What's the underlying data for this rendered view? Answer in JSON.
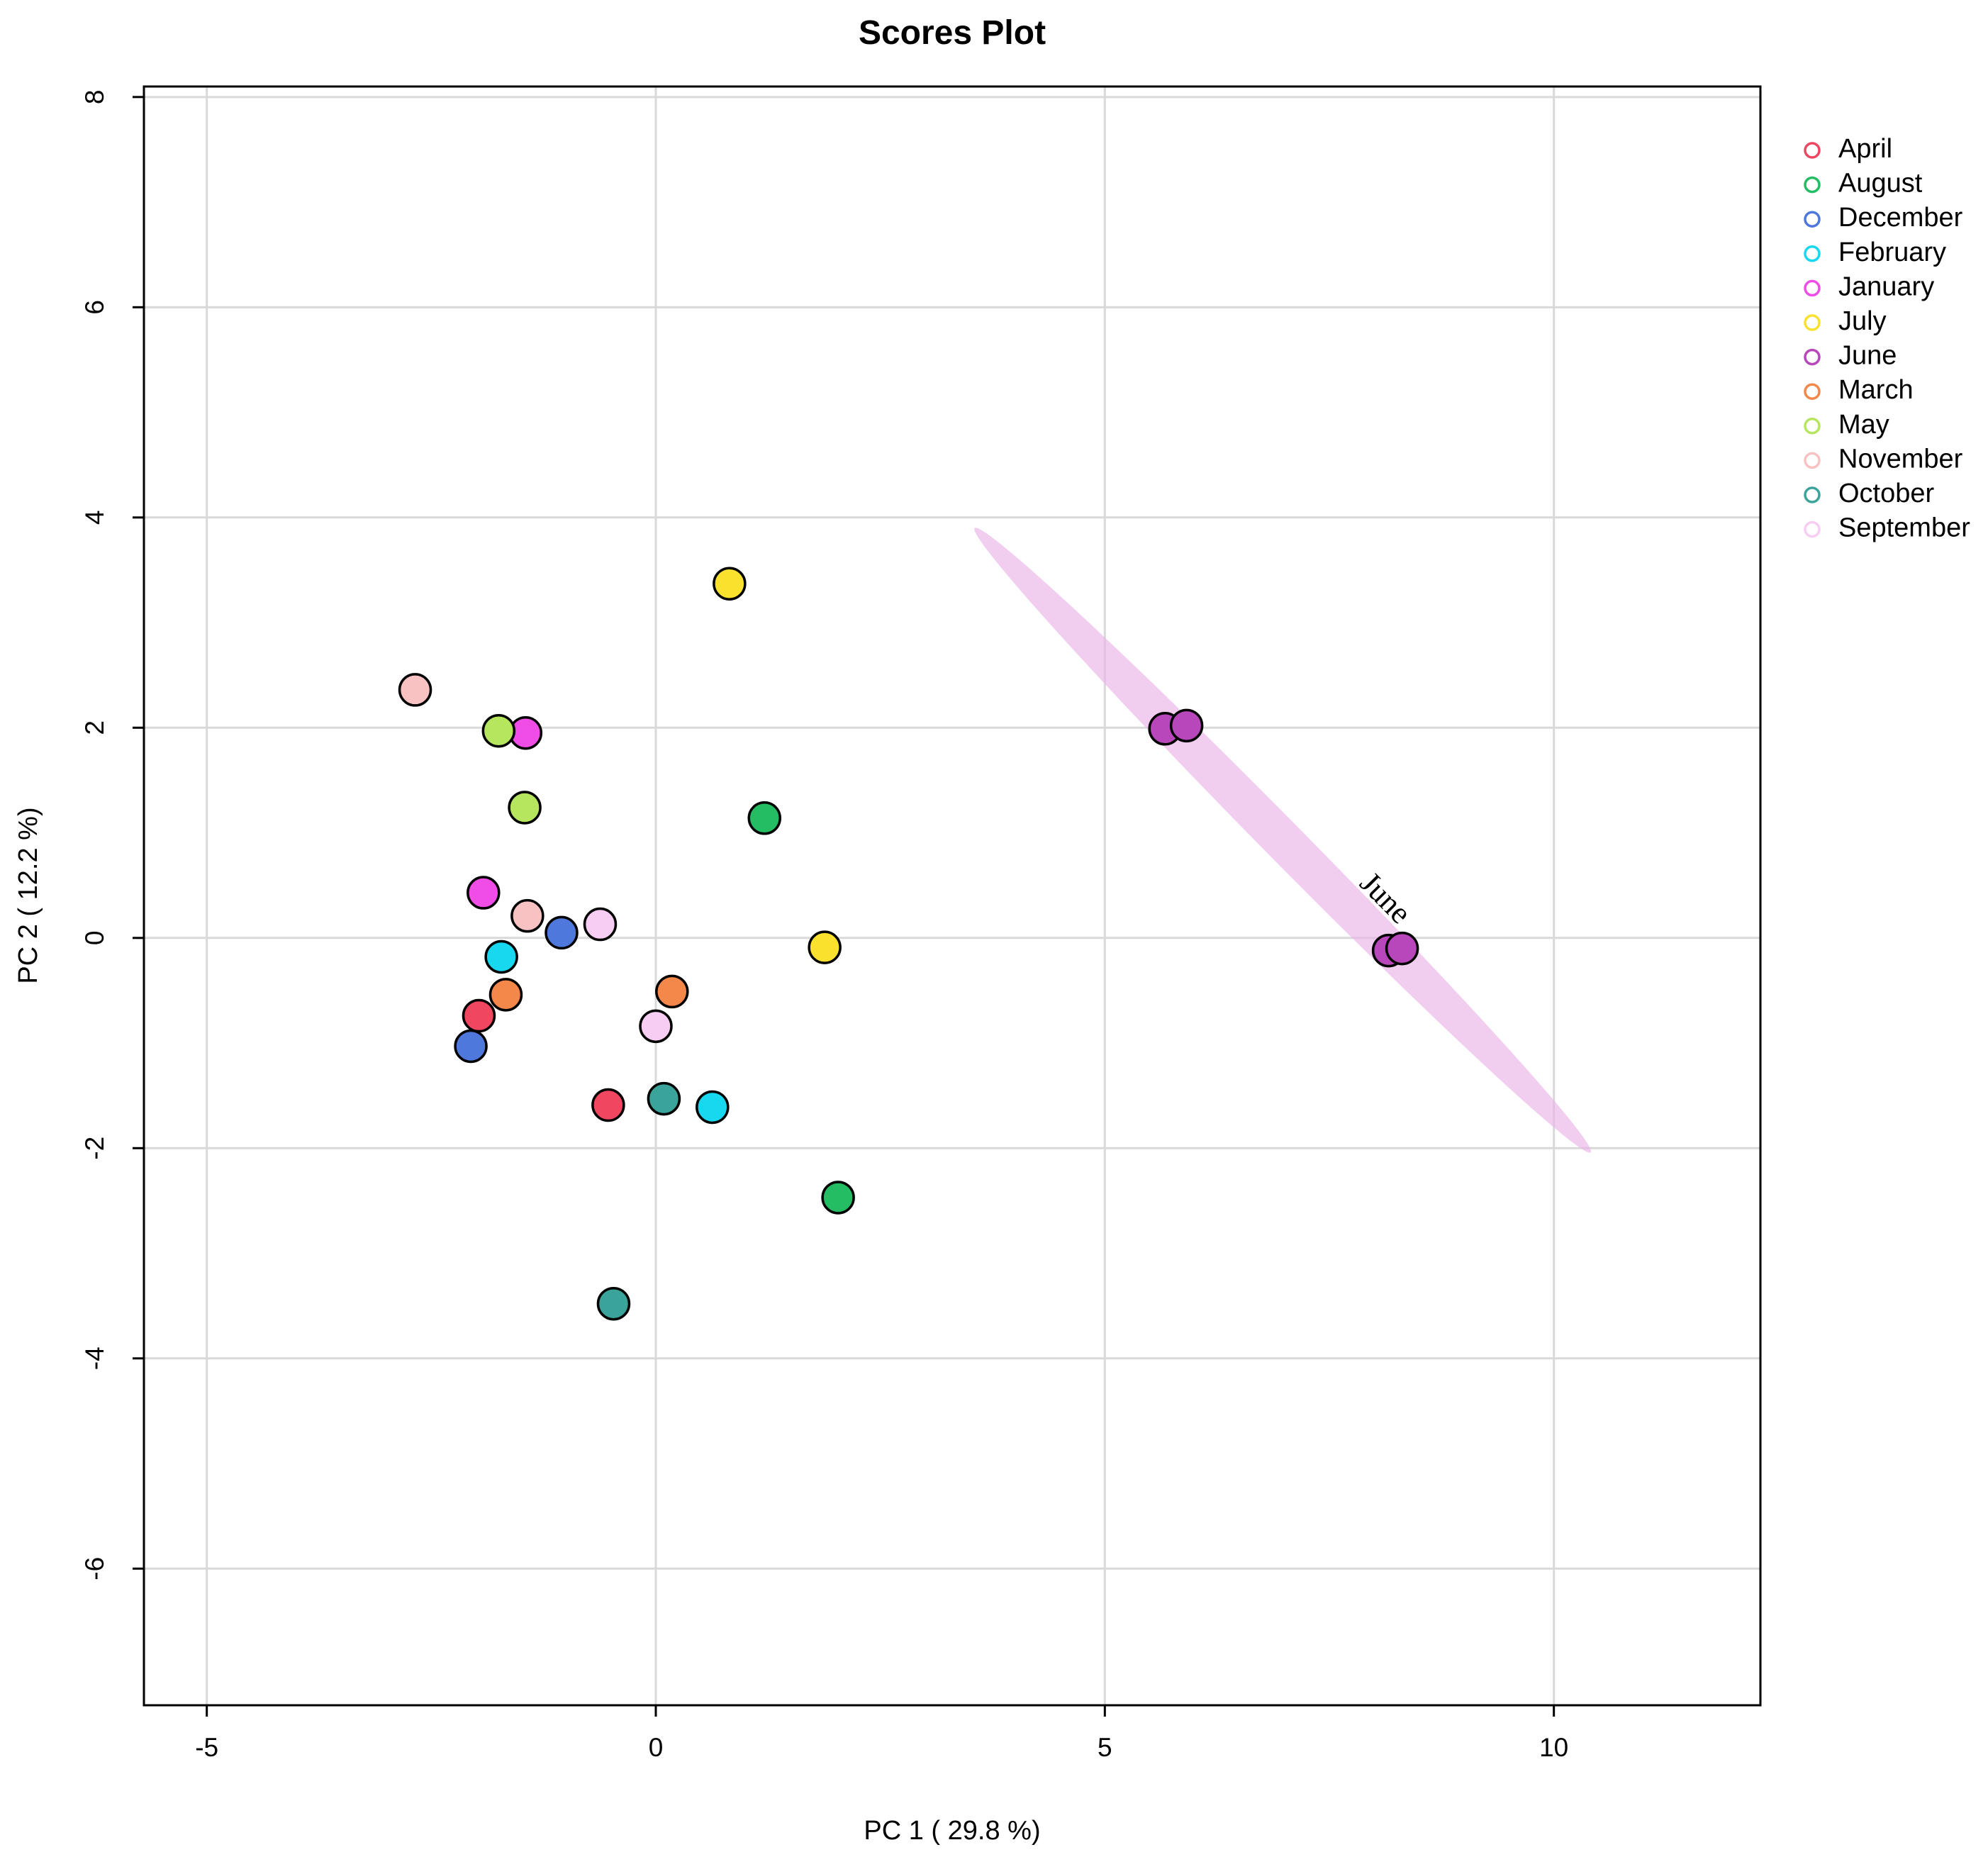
{
  "chart_data": {
    "type": "scatter",
    "title": "Scores Plot",
    "xlabel": "PC 1 ( 29.8 %)",
    "ylabel": "PC 2 ( 12.2 %)",
    "xlim": [
      -5.7,
      12.3
    ],
    "ylim": [
      -7.3,
      8.1
    ],
    "xticks": [
      -5,
      0,
      5,
      10
    ],
    "yticks": [
      -6,
      -4,
      -2,
      0,
      2,
      4,
      6,
      8
    ],
    "xtick_labels": [
      "-5",
      "0",
      "5",
      "10"
    ],
    "ytick_labels": [
      "-6",
      "-4",
      "-2",
      "0",
      "2",
      "4",
      "6",
      "8"
    ],
    "grid": true,
    "legend_position": "right",
    "series": [
      {
        "name": "April",
        "color": "#f0465f",
        "points": [
          [
            -1.97,
            -0.74
          ],
          [
            -0.53,
            -1.59
          ]
        ]
      },
      {
        "name": "August",
        "color": "#25bd63",
        "points": [
          [
            1.21,
            1.14
          ],
          [
            2.03,
            -2.47
          ]
        ]
      },
      {
        "name": "December",
        "color": "#4f78dc",
        "points": [
          [
            -2.06,
            -1.03
          ],
          [
            -1.05,
            0.05
          ]
        ]
      },
      {
        "name": "February",
        "color": "#17d8ef",
        "points": [
          [
            -1.72,
            -0.18
          ],
          [
            0.63,
            -1.61
          ]
        ]
      },
      {
        "name": "January",
        "color": "#f04de6",
        "points": [
          [
            -1.92,
            0.43
          ],
          [
            -1.45,
            1.95
          ]
        ]
      },
      {
        "name": "July",
        "color": "#f9e12d",
        "points": [
          [
            0.82,
            3.37
          ],
          [
            1.88,
            -0.09
          ]
        ]
      },
      {
        "name": "June",
        "color": "#b747ba",
        "points": [
          [
            5.67,
            1.99
          ],
          [
            5.91,
            2.02
          ],
          [
            8.16,
            -0.12
          ],
          [
            8.31,
            -0.1
          ]
        ]
      },
      {
        "name": "March",
        "color": "#f4884a",
        "points": [
          [
            -1.67,
            -0.54
          ],
          [
            0.18,
            -0.51
          ]
        ]
      },
      {
        "name": "May",
        "color": "#b6e55e",
        "points": [
          [
            -1.75,
            1.97
          ],
          [
            -1.46,
            1.24
          ]
        ]
      },
      {
        "name": "November",
        "color": "#f8c2c2",
        "points": [
          [
            -2.68,
            2.36
          ],
          [
            -1.43,
            0.21
          ]
        ]
      },
      {
        "name": "October",
        "color": "#3aa49b",
        "points": [
          [
            0.09,
            -1.53
          ],
          [
            -0.47,
            -3.48
          ]
        ]
      },
      {
        "name": "September",
        "color": "#f8cdf3",
        "points": [
          [
            -0.62,
            0.13
          ],
          [
            0.0,
            -0.84
          ]
        ]
      }
    ],
    "ellipses": [
      {
        "group": "June",
        "label": "June",
        "color": "#e9b4e8",
        "center": [
          6.98,
          0.93
        ],
        "end_a": [
          3.55,
          3.9
        ],
        "end_b": [
          10.41,
          -2.04
        ],
        "minor_half": 0.19
      }
    ]
  }
}
